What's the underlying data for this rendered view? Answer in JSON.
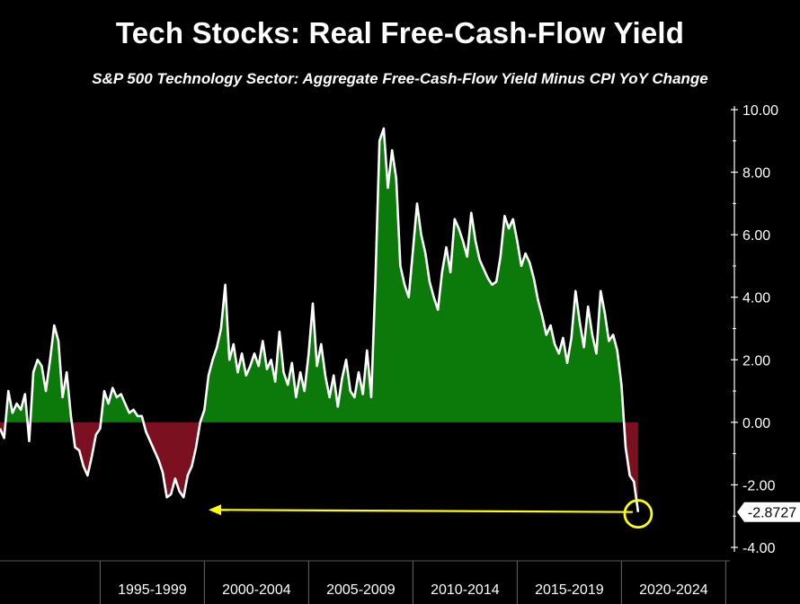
{
  "header": {
    "title": "Tech Stocks: Real Free-Cash-Flow Yield",
    "subtitle": "S&P 500 Technology Sector: Aggregate Free-Cash-Flow Yield Minus CPI YoY Change"
  },
  "colors": {
    "positive_fill": "#0b7a0b",
    "negative_fill": "#7a1020",
    "line": "#ffffff",
    "annotation": "#ffff00",
    "axis": "#ffffff",
    "background": "#000000"
  },
  "chart_data": {
    "type": "area",
    "title": "Tech Stocks: Real Free-Cash-Flow Yield",
    "subtitle": "S&P 500 Technology Sector: Aggregate Free-Cash-Flow Yield Minus CPI YoY Change",
    "xlabel": "",
    "ylabel": "",
    "x_range": [
      1990.2,
      2025.2
    ],
    "ylim": [
      -4,
      10
    ],
    "y_ticks": [
      "10.00",
      "8.00",
      "6.00",
      "4.00",
      "2.00",
      "0.00",
      "-2.00",
      "-4.00"
    ],
    "x_categories": [
      "1995-1999",
      "2000-2004",
      "2005-2009",
      "2010-2014",
      "2015-2019",
      "2020-2024"
    ],
    "x_boundaries": [
      1990.0,
      1995.0,
      2000.0,
      2005.0,
      2010.0,
      2015.0,
      2020.0,
      2025.0
    ],
    "grid": false,
    "legend": "none",
    "last_value_label": "-2.8727",
    "series": [
      {
        "points": [
          [
            1990.2,
            -0.2
          ],
          [
            1990.4,
            -0.5
          ],
          [
            1990.6,
            1.0
          ],
          [
            1990.8,
            0.3
          ],
          [
            1991.0,
            0.6
          ],
          [
            1991.2,
            0.4
          ],
          [
            1991.4,
            0.9
          ],
          [
            1991.6,
            -0.6
          ],
          [
            1991.8,
            1.6
          ],
          [
            1992.0,
            2.0
          ],
          [
            1992.2,
            1.8
          ],
          [
            1992.4,
            1.0
          ],
          [
            1992.6,
            2.0
          ],
          [
            1992.8,
            3.1
          ],
          [
            1993.0,
            2.6
          ],
          [
            1993.2,
            0.8
          ],
          [
            1993.4,
            1.6
          ],
          [
            1993.6,
            0.2
          ],
          [
            1993.8,
            -0.8
          ],
          [
            1994.0,
            -0.9
          ],
          [
            1994.2,
            -1.4
          ],
          [
            1994.4,
            -1.7
          ],
          [
            1994.6,
            -1.1
          ],
          [
            1994.8,
            -0.4
          ],
          [
            1995.0,
            -0.2
          ],
          [
            1995.2,
            1.0
          ],
          [
            1995.4,
            0.6
          ],
          [
            1995.6,
            1.1
          ],
          [
            1995.8,
            0.8
          ],
          [
            1996.0,
            0.9
          ],
          [
            1996.2,
            0.6
          ],
          [
            1996.4,
            0.3
          ],
          [
            1996.6,
            0.4
          ],
          [
            1996.8,
            0.2
          ],
          [
            1997.0,
            0.2
          ],
          [
            1997.2,
            -0.3
          ],
          [
            1997.4,
            -0.6
          ],
          [
            1997.6,
            -0.9
          ],
          [
            1997.8,
            -1.2
          ],
          [
            1998.0,
            -1.6
          ],
          [
            1998.2,
            -2.4
          ],
          [
            1998.4,
            -2.3
          ],
          [
            1998.6,
            -1.8
          ],
          [
            1998.8,
            -2.2
          ],
          [
            1999.0,
            -2.4
          ],
          [
            1999.2,
            -1.7
          ],
          [
            1999.4,
            -1.4
          ],
          [
            1999.6,
            -0.8
          ],
          [
            1999.8,
            0.0
          ],
          [
            2000.0,
            0.4
          ],
          [
            2000.2,
            1.5
          ],
          [
            2000.4,
            2.0
          ],
          [
            2000.6,
            2.4
          ],
          [
            2000.8,
            3.0
          ],
          [
            2001.0,
            4.4
          ],
          [
            2001.2,
            2.0
          ],
          [
            2001.4,
            2.5
          ],
          [
            2001.6,
            1.6
          ],
          [
            2001.8,
            2.2
          ],
          [
            2002.0,
            1.5
          ],
          [
            2002.2,
            1.8
          ],
          [
            2002.4,
            2.2
          ],
          [
            2002.6,
            1.8
          ],
          [
            2002.8,
            2.6
          ],
          [
            2003.0,
            1.7
          ],
          [
            2003.2,
            2.0
          ],
          [
            2003.4,
            1.3
          ],
          [
            2003.6,
            2.9
          ],
          [
            2003.8,
            1.6
          ],
          [
            2004.0,
            1.2
          ],
          [
            2004.2,
            1.9
          ],
          [
            2004.4,
            0.8
          ],
          [
            2004.6,
            1.6
          ],
          [
            2004.8,
            1.0
          ],
          [
            2005.0,
            2.2
          ],
          [
            2005.2,
            3.8
          ],
          [
            2005.4,
            1.8
          ],
          [
            2005.6,
            2.5
          ],
          [
            2005.8,
            1.5
          ],
          [
            2006.0,
            0.8
          ],
          [
            2006.2,
            1.5
          ],
          [
            2006.4,
            0.5
          ],
          [
            2006.6,
            1.4
          ],
          [
            2006.8,
            2.0
          ],
          [
            2007.0,
            1.0
          ],
          [
            2007.2,
            0.8
          ],
          [
            2007.4,
            1.6
          ],
          [
            2007.6,
            0.9
          ],
          [
            2007.8,
            2.3
          ],
          [
            2008.0,
            0.8
          ],
          [
            2008.2,
            4.5
          ],
          [
            2008.4,
            9.0
          ],
          [
            2008.6,
            9.4
          ],
          [
            2008.8,
            7.5
          ],
          [
            2009.0,
            8.7
          ],
          [
            2009.2,
            7.8
          ],
          [
            2009.4,
            5.0
          ],
          [
            2009.6,
            4.4
          ],
          [
            2009.8,
            4.0
          ],
          [
            2010.0,
            5.5
          ],
          [
            2010.2,
            7.0
          ],
          [
            2010.4,
            6.0
          ],
          [
            2010.6,
            5.4
          ],
          [
            2010.8,
            4.5
          ],
          [
            2011.0,
            4.0
          ],
          [
            2011.2,
            3.6
          ],
          [
            2011.4,
            4.8
          ],
          [
            2011.6,
            5.6
          ],
          [
            2011.8,
            4.8
          ],
          [
            2012.0,
            6.5
          ],
          [
            2012.2,
            6.2
          ],
          [
            2012.4,
            5.8
          ],
          [
            2012.6,
            5.3
          ],
          [
            2012.8,
            6.7
          ],
          [
            2013.0,
            5.8
          ],
          [
            2013.2,
            5.2
          ],
          [
            2013.4,
            4.9
          ],
          [
            2013.6,
            4.6
          ],
          [
            2013.8,
            4.4
          ],
          [
            2014.0,
            4.5
          ],
          [
            2014.2,
            5.3
          ],
          [
            2014.4,
            6.6
          ],
          [
            2014.6,
            6.2
          ],
          [
            2014.8,
            6.5
          ],
          [
            2015.0,
            5.8
          ],
          [
            2015.2,
            5.0
          ],
          [
            2015.4,
            5.4
          ],
          [
            2015.6,
            5.1
          ],
          [
            2015.8,
            4.6
          ],
          [
            2016.0,
            3.9
          ],
          [
            2016.2,
            3.4
          ],
          [
            2016.4,
            2.8
          ],
          [
            2016.6,
            3.1
          ],
          [
            2016.8,
            2.5
          ],
          [
            2017.0,
            2.2
          ],
          [
            2017.2,
            2.7
          ],
          [
            2017.4,
            1.9
          ],
          [
            2017.6,
            2.7
          ],
          [
            2017.8,
            4.2
          ],
          [
            2018.0,
            3.2
          ],
          [
            2018.2,
            2.4
          ],
          [
            2018.4,
            3.7
          ],
          [
            2018.6,
            2.8
          ],
          [
            2018.8,
            2.2
          ],
          [
            2019.0,
            4.2
          ],
          [
            2019.2,
            3.5
          ],
          [
            2019.4,
            2.6
          ],
          [
            2019.6,
            2.8
          ],
          [
            2019.8,
            2.3
          ],
          [
            2020.0,
            1.2
          ],
          [
            2020.2,
            -0.8
          ],
          [
            2020.4,
            -1.7
          ],
          [
            2020.6,
            -1.9
          ],
          [
            2020.8,
            -2.87
          ]
        ]
      }
    ],
    "annotation": {
      "type": "arrow",
      "from": [
        2020.8,
        -2.87
      ],
      "to": [
        2000.2,
        -2.8
      ]
    }
  }
}
